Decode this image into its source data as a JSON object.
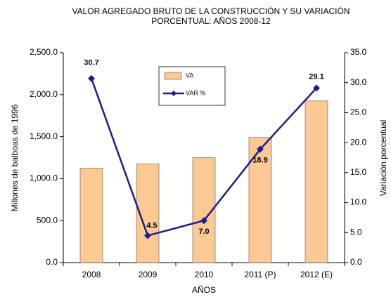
{
  "chart_data": {
    "type": "bar_line",
    "title": [
      "VALOR AGREGADO BRUTO DE LA CONSTRUCCIÓN Y SU VARIACIÓN",
      "PORCENTUAL: AÑOS  2008-12"
    ],
    "x_label": "AÑOS",
    "y_label": "Millones de balboas de 1996",
    "y2_label": "Variación porcentual",
    "categories": [
      "2008",
      "2009",
      "2010",
      "2011 (P)",
      "2012 (E)"
    ],
    "series": [
      {
        "name": "VA",
        "type": "bar",
        "color": "#fcc894",
        "values": [
          1125,
          1175,
          1250,
          1490,
          1925
        ]
      },
      {
        "name": "VAR %",
        "type": "line",
        "axis": "y2",
        "color": "#1c1c8c",
        "values": [
          30.7,
          4.5,
          7.0,
          18.9,
          29.1
        ],
        "value_labels": [
          "30.7",
          "4.5",
          "7.0",
          "18.9",
          "29.1"
        ]
      }
    ],
    "ylim": [
      0,
      2500
    ],
    "yticks": [
      {
        "value": 0,
        "label": "0.0"
      },
      {
        "value": 500,
        "label": "500.0"
      },
      {
        "value": 1000,
        "label": "1,000.0"
      },
      {
        "value": 1500,
        "label": "1,500.0"
      },
      {
        "value": 2000,
        "label": "2,000.0"
      },
      {
        "value": 2500,
        "label": "2,500.0"
      }
    ],
    "y2lim": [
      0,
      35
    ],
    "y2ticks": [
      {
        "value": 0,
        "label": "0.0"
      },
      {
        "value": 5,
        "label": "5.0"
      },
      {
        "value": 10,
        "label": "10.0"
      },
      {
        "value": 15,
        "label": "15.0"
      },
      {
        "value": 20,
        "label": "20.0"
      },
      {
        "value": 25,
        "label": "25.0"
      },
      {
        "value": 30,
        "label": "30.0"
      },
      {
        "value": 35,
        "label": "35.0"
      }
    ],
    "legend": "top-center"
  }
}
